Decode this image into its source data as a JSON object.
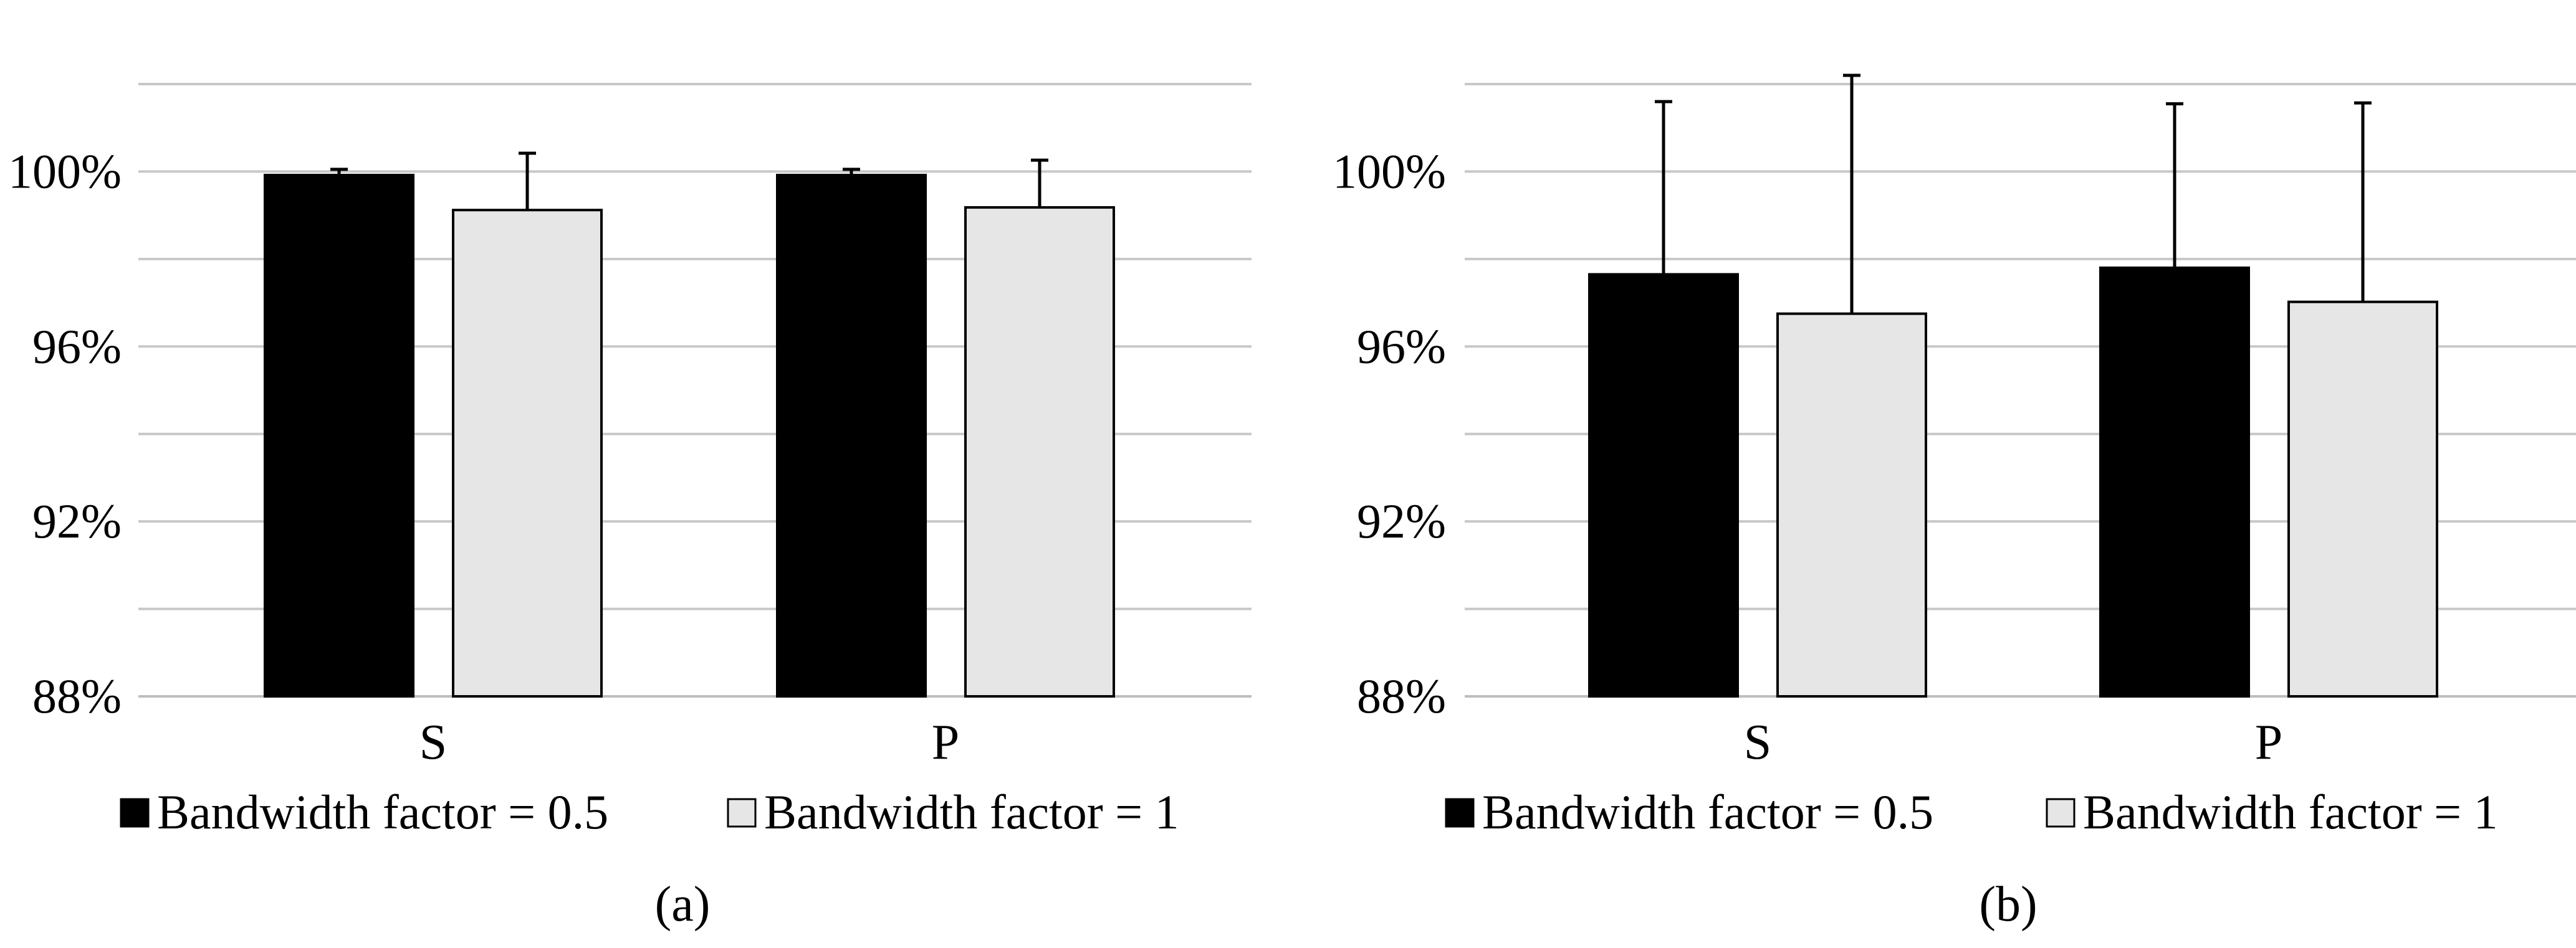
{
  "chart_data": [
    {
      "type": "bar",
      "panel_label": "(a)",
      "categories": [
        "S",
        "P"
      ],
      "series": [
        {
          "name": "Bandwidth factor = 0.5",
          "color": "#000000",
          "values": [
            99.92,
            99.92
          ],
          "error": [
            0.13,
            0.13
          ]
        },
        {
          "name": "Bandwidth factor = 1",
          "color": "#e6e6e6",
          "values": [
            99.12,
            99.18
          ],
          "error": [
            1.3,
            1.08
          ]
        }
      ],
      "ylim": [
        88,
        102
      ],
      "yticks": [
        88,
        92,
        96,
        100
      ],
      "yticks_labels": [
        "88%",
        "92%",
        "96%",
        "100%"
      ],
      "grid": true,
      "legend_position": "bottom"
    },
    {
      "type": "bar",
      "panel_label": "(b)",
      "categories": [
        "S",
        "P"
      ],
      "series": [
        {
          "name": "Bandwidth factor = 0.5",
          "color": "#000000",
          "values": [
            97.65,
            97.8
          ],
          "error": [
            3.95,
            3.75
          ]
        },
        {
          "name": "Bandwidth factor = 1",
          "color": "#e6e6e6",
          "values": [
            96.75,
            97.02
          ],
          "error": [
            5.45,
            4.55
          ]
        }
      ],
      "ylim": [
        88,
        102
      ],
      "yticks": [
        88,
        92,
        96,
        100
      ],
      "yticks_labels": [
        "88%",
        "92%",
        "96%",
        "100%"
      ],
      "grid": true,
      "legend_position": "bottom"
    }
  ]
}
